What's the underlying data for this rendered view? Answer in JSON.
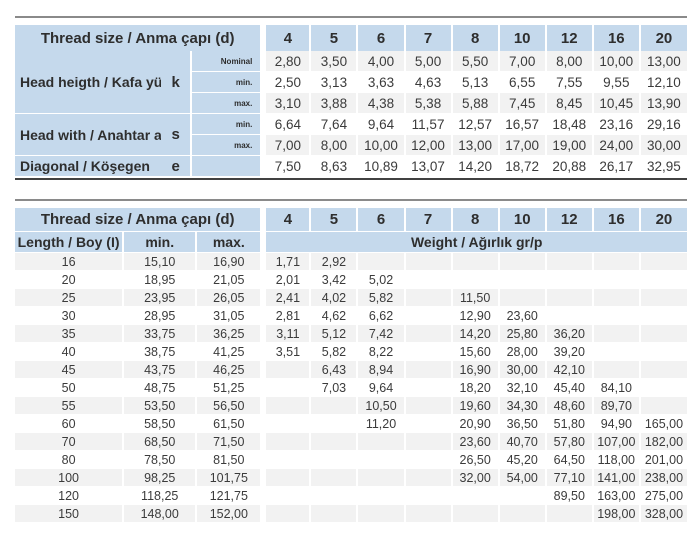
{
  "columns_d": [
    "4",
    "5",
    "6",
    "7",
    "8",
    "10",
    "12",
    "16",
    "20"
  ],
  "table1": {
    "corner_header": "Thread size / Anma çapı (d)",
    "groups": [
      {
        "label": "Head heigth / Kafa yüksekliği",
        "symbol": "k",
        "rows": [
          {
            "sub": "Nominal",
            "values": [
              "2,80",
              "3,50",
              "4,00",
              "5,00",
              "5,50",
              "7,00",
              "8,00",
              "10,00",
              "13,00"
            ]
          },
          {
            "sub": "min.",
            "values": [
              "2,50",
              "3,13",
              "3,63",
              "4,63",
              "5,13",
              "6,55",
              "7,55",
              "9,55",
              "12,10"
            ]
          },
          {
            "sub": "max.",
            "values": [
              "3,10",
              "3,88",
              "4,38",
              "5,38",
              "5,88",
              "7,45",
              "8,45",
              "10,45",
              "13,90"
            ]
          }
        ]
      },
      {
        "label": "Head with / Anahtar ağzı",
        "symbol": "s",
        "rows": [
          {
            "sub": "min.",
            "values": [
              "6,64",
              "7,64",
              "9,64",
              "11,57",
              "12,57",
              "16,57",
              "18,48",
              "23,16",
              "29,16"
            ]
          },
          {
            "sub": "max.",
            "values": [
              "7,00",
              "8,00",
              "10,00",
              "12,00",
              "13,00",
              "17,00",
              "19,00",
              "24,00",
              "30,00"
            ]
          }
        ]
      },
      {
        "label": "Diagonal / Köşegen",
        "symbol": "e",
        "rows": [
          {
            "sub": "",
            "values": [
              "7,50",
              "8,63",
              "10,89",
              "13,07",
              "14,20",
              "18,72",
              "20,88",
              "26,17",
              "32,95"
            ]
          }
        ]
      }
    ]
  },
  "table2": {
    "corner_header": "Thread size / Anma çapı (d)",
    "length_header": "Length / Boy (I)",
    "min_header": "min.",
    "max_header": "max.",
    "weight_header": "Weight / Ağırlık gr/p",
    "rows": [
      {
        "length": "16",
        "min": "15,10",
        "max": "16,90",
        "weights": [
          "1,71",
          "2,92",
          "",
          "",
          "",
          "",
          "",
          "",
          ""
        ]
      },
      {
        "length": "20",
        "min": "18,95",
        "max": "21,05",
        "weights": [
          "2,01",
          "3,42",
          "5,02",
          "",
          "",
          "",
          "",
          "",
          ""
        ]
      },
      {
        "length": "25",
        "min": "23,95",
        "max": "26,05",
        "weights": [
          "2,41",
          "4,02",
          "5,82",
          "",
          "11,50",
          "",
          "",
          "",
          ""
        ]
      },
      {
        "length": "30",
        "min": "28,95",
        "max": "31,05",
        "weights": [
          "2,81",
          "4,62",
          "6,62",
          "",
          "12,90",
          "23,60",
          "",
          "",
          ""
        ]
      },
      {
        "length": "35",
        "min": "33,75",
        "max": "36,25",
        "weights": [
          "3,11",
          "5,12",
          "7,42",
          "",
          "14,20",
          "25,80",
          "36,20",
          "",
          ""
        ]
      },
      {
        "length": "40",
        "min": "38,75",
        "max": "41,25",
        "weights": [
          "3,51",
          "5,82",
          "8,22",
          "",
          "15,60",
          "28,00",
          "39,20",
          "",
          ""
        ]
      },
      {
        "length": "45",
        "min": "43,75",
        "max": "46,25",
        "weights": [
          "",
          "6,43",
          "8,94",
          "",
          "16,90",
          "30,00",
          "42,10",
          "",
          ""
        ]
      },
      {
        "length": "50",
        "min": "48,75",
        "max": "51,25",
        "weights": [
          "",
          "7,03",
          "9,64",
          "",
          "18,20",
          "32,10",
          "45,40",
          "84,10",
          ""
        ]
      },
      {
        "length": "55",
        "min": "53,50",
        "max": "56,50",
        "weights": [
          "",
          "",
          "10,50",
          "",
          "19,60",
          "34,30",
          "48,60",
          "89,70",
          ""
        ]
      },
      {
        "length": "60",
        "min": "58,50",
        "max": "61,50",
        "weights": [
          "",
          "",
          "11,20",
          "",
          "20,90",
          "36,50",
          "51,80",
          "94,90",
          "165,00"
        ]
      },
      {
        "length": "70",
        "min": "68,50",
        "max": "71,50",
        "weights": [
          "",
          "",
          "",
          "",
          "23,60",
          "40,70",
          "57,80",
          "107,00",
          "182,00"
        ]
      },
      {
        "length": "80",
        "min": "78,50",
        "max": "81,50",
        "weights": [
          "",
          "",
          "",
          "",
          "26,50",
          "45,20",
          "64,50",
          "118,00",
          "201,00"
        ]
      },
      {
        "length": "100",
        "min": "98,25",
        "max": "101,75",
        "weights": [
          "",
          "",
          "",
          "",
          "32,00",
          "54,00",
          "77,10",
          "141,00",
          "238,00"
        ]
      },
      {
        "length": "120",
        "min": "118,25",
        "max": "121,75",
        "weights": [
          "",
          "",
          "",
          "",
          "",
          "",
          "89,50",
          "163,00",
          "275,00"
        ]
      },
      {
        "length": "150",
        "min": "148,00",
        "max": "152,00",
        "weights": [
          "",
          "",
          "",
          "",
          "",
          "",
          "",
          "198,00",
          "328,00"
        ]
      }
    ]
  },
  "colors": {
    "header_blue": "#c5d9ec",
    "row_stripe": "#f2f2f2",
    "rule_light": "#8a8a8a",
    "rule_dark": "#414141",
    "text": "#3b3b3b"
  }
}
